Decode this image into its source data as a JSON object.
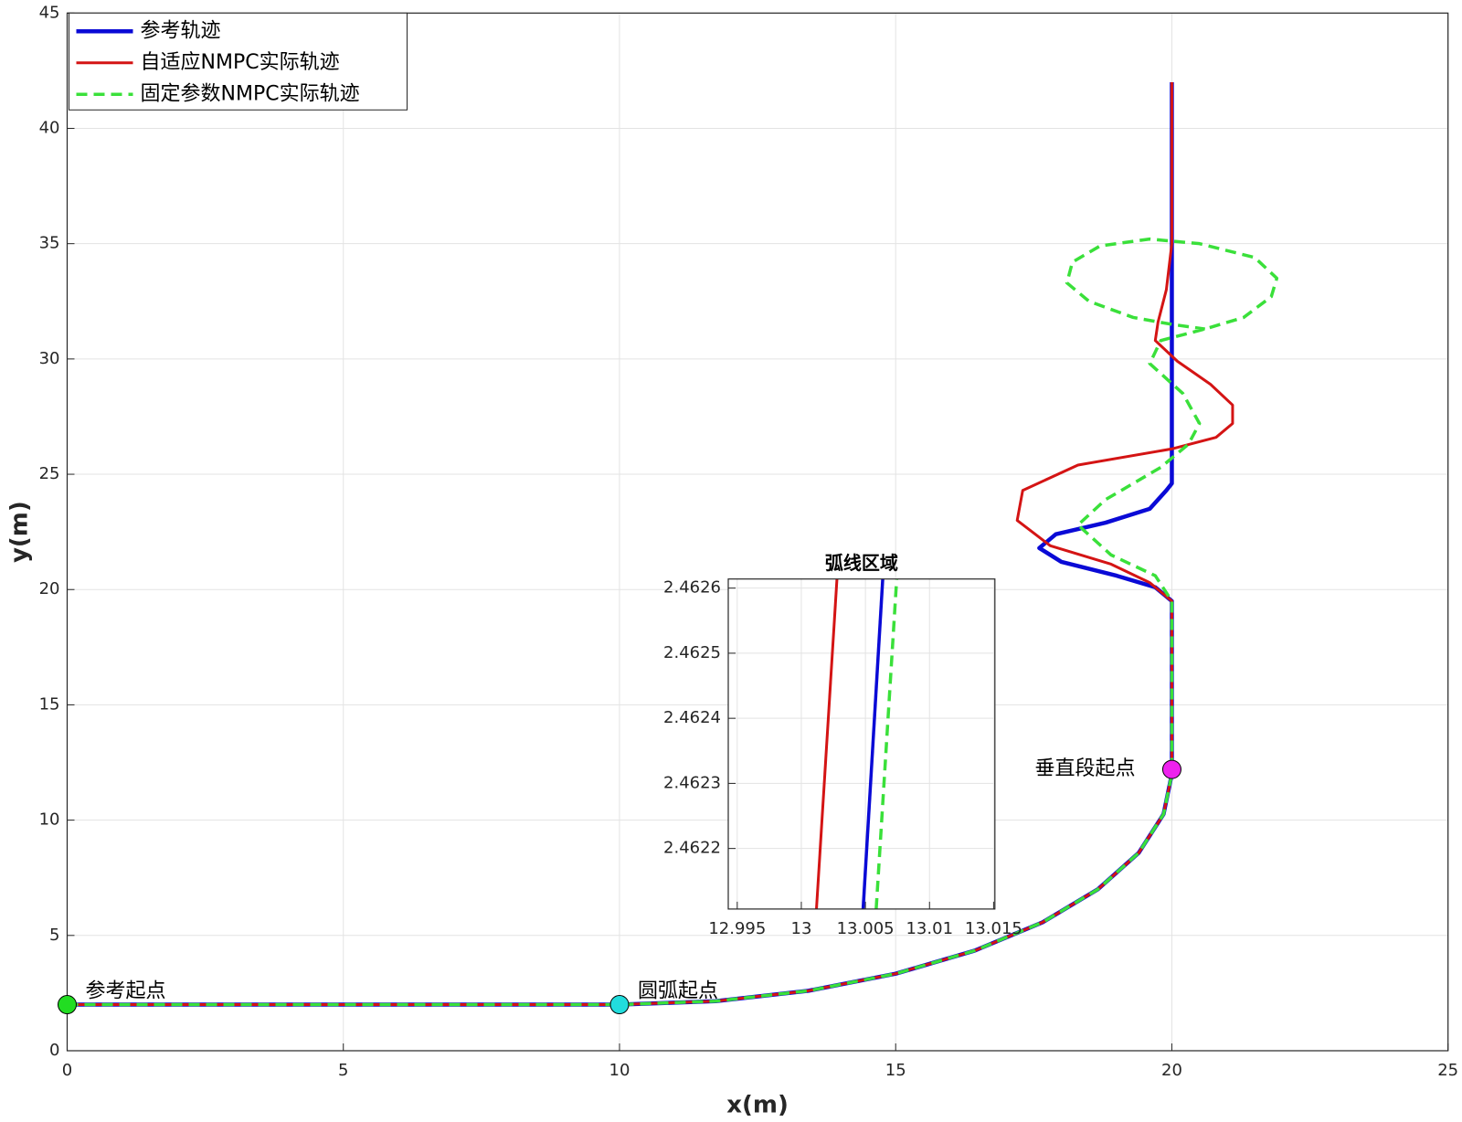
{
  "chart_data": [
    {
      "type": "line",
      "xlabel": "x(m)",
      "ylabel": "y(m)",
      "xlim": [
        0,
        25
      ],
      "xticks": [
        0,
        5,
        10,
        15,
        20,
        25
      ],
      "ylim": [
        0,
        45
      ],
      "yticks": [
        0,
        5,
        10,
        15,
        20,
        25,
        30,
        35,
        40,
        45
      ],
      "grid": true,
      "legend": "upper left",
      "series": [
        {
          "name": "参考轨迹",
          "color": "#0a0ad6",
          "style": "solid",
          "x": [
            0,
            10,
            11.74,
            13.42,
            15,
            16.43,
            17.66,
            18.66,
            19.4,
            19.85,
            20,
            20,
            19.7,
            19.0,
            18.0,
            17.6,
            17.9,
            18.8,
            19.6,
            19.9,
            20,
            20
          ],
          "y": [
            2,
            2,
            2.15,
            2.6,
            3.34,
            4.34,
            5.57,
            7,
            8.58,
            10.26,
            12,
            19.5,
            20.1,
            20.6,
            21.2,
            21.8,
            22.4,
            22.9,
            23.5,
            24.3,
            24.6,
            42
          ]
        },
        {
          "name": "自适应NMPC实际轨迹",
          "color": "#d41414",
          "style": "solid",
          "x": [
            0,
            10,
            11.74,
            13.42,
            15,
            16.43,
            17.66,
            18.66,
            19.4,
            19.85,
            20,
            20,
            19.6,
            18.9,
            17.8,
            17.2,
            17.3,
            18.3,
            20,
            20.8,
            21.1,
            21.1,
            20.7,
            20.1,
            19.7,
            19.75,
            19.9,
            20,
            20
          ],
          "y": [
            2,
            2,
            2.15,
            2.6,
            3.34,
            4.34,
            5.57,
            7,
            8.58,
            10.26,
            12,
            19.5,
            20.3,
            21.1,
            21.9,
            23.0,
            24.3,
            25.4,
            26.1,
            26.6,
            27.2,
            28.0,
            28.9,
            29.9,
            30.8,
            31.6,
            33,
            35,
            42
          ]
        },
        {
          "name": "固定参数NMPC实际轨迹",
          "color": "#3ae03a",
          "style": "dashed",
          "x": [
            0,
            10,
            11.74,
            13.42,
            15,
            16.43,
            17.66,
            18.66,
            19.4,
            19.85,
            20,
            20,
            19.7,
            18.9,
            18.3,
            18.8,
            19.8,
            20.3,
            20.5,
            20.2,
            19.6,
            19.8,
            20.6,
            21.3,
            21.8,
            21.9,
            21.5,
            20.5,
            19.6,
            18.7,
            18.2,
            18.1,
            18.5,
            19.3,
            20,
            20.6
          ],
          "y": [
            2,
            2,
            2.15,
            2.6,
            3.34,
            4.34,
            5.57,
            7,
            8.58,
            10.26,
            12,
            19.5,
            20.6,
            21.5,
            22.8,
            23.9,
            25.3,
            26.3,
            27.2,
            28.5,
            29.8,
            30.8,
            31.3,
            31.8,
            32.7,
            33.5,
            34.4,
            35.0,
            35.2,
            34.9,
            34.2,
            33.3,
            32.5,
            31.8,
            31.5,
            31.3
          ]
        }
      ],
      "annotations": [
        {
          "text": "参考起点",
          "x": 0,
          "y": 2,
          "color": "#22dd22",
          "side": "right"
        },
        {
          "text": "圆弧起点",
          "x": 10,
          "y": 2,
          "color": "#22dddd",
          "side": "right"
        },
        {
          "text": "垂直段起点",
          "x": 20,
          "y": 12.2,
          "color": "#ee22ee",
          "side": "left"
        }
      ]
    },
    {
      "type": "line",
      "title": "弧线区域",
      "xlim": [
        12.9943,
        13.0151
      ],
      "xticks": [
        12.995,
        13,
        13.005,
        13.01,
        13.015
      ],
      "ylim": [
        2.462107,
        2.462614
      ],
      "yticks": [
        2.4622,
        2.4623,
        2.4624,
        2.4625,
        2.4626
      ],
      "grid": true,
      "series": [
        {
          "color": "#d41414",
          "style": "solid",
          "x": [
            13.00118,
            13.00278
          ],
          "y": [
            2.462107,
            2.462614
          ]
        },
        {
          "color": "#0a0ad6",
          "style": "solid",
          "x": [
            13.00482,
            13.00635
          ],
          "y": [
            2.462107,
            2.462614
          ]
        },
        {
          "color": "#3ae03a",
          "style": "dashed",
          "x": [
            13.00584,
            13.00744
          ],
          "y": [
            2.462107,
            2.462614
          ]
        }
      ]
    }
  ]
}
